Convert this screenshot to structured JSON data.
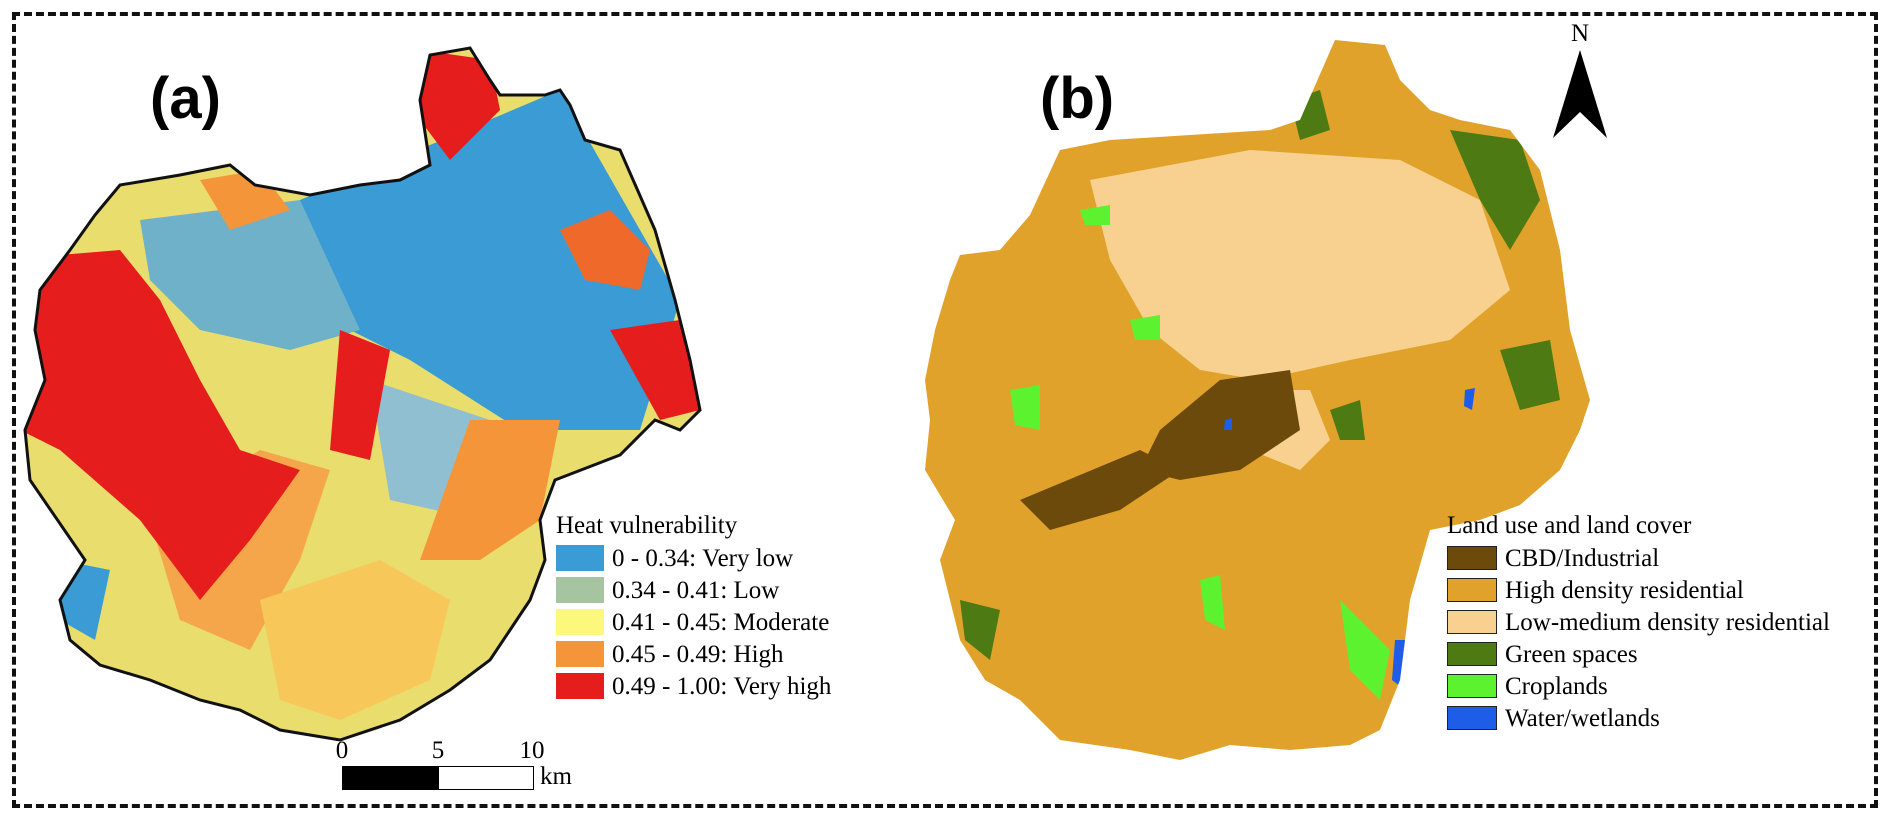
{
  "panel_a": {
    "label": "(a)",
    "legend_title": "Heat vulnerability",
    "legend_items": [
      {
        "range": "0 - 0.34:",
        "label": "Very low",
        "color": "#3a9bd5"
      },
      {
        "range": "0.34 - 0.41:",
        "label": "Low",
        "color": "#a6c4a0"
      },
      {
        "range": "0.41 - 0.45:",
        "label": "Moderate",
        "color": "#fbf87c"
      },
      {
        "range": "0.45 - 0.49:",
        "label": "High",
        "color": "#f5953a"
      },
      {
        "range": "0.49 - 1.00:",
        "label": "Very high",
        "color": "#e51d1d"
      }
    ],
    "scalebar": {
      "ticks": [
        "0",
        "5",
        "10"
      ],
      "unit": "km"
    }
  },
  "panel_b": {
    "label": "(b)",
    "legend_title": "Land use and land cover",
    "legend_items": [
      {
        "label": "CBD/Industrial",
        "color": "#6b4a0c"
      },
      {
        "label": "High density residential",
        "color": "#e0a22a"
      },
      {
        "label": "Low-medium density residential",
        "color": "#f8d08f"
      },
      {
        "label": "Green spaces",
        "color": "#4d7a12"
      },
      {
        "label": "Croplands",
        "color": "#5cf230"
      },
      {
        "label": "Water/wetlands",
        "color": "#1d5de8"
      }
    ],
    "north_label": "N"
  }
}
